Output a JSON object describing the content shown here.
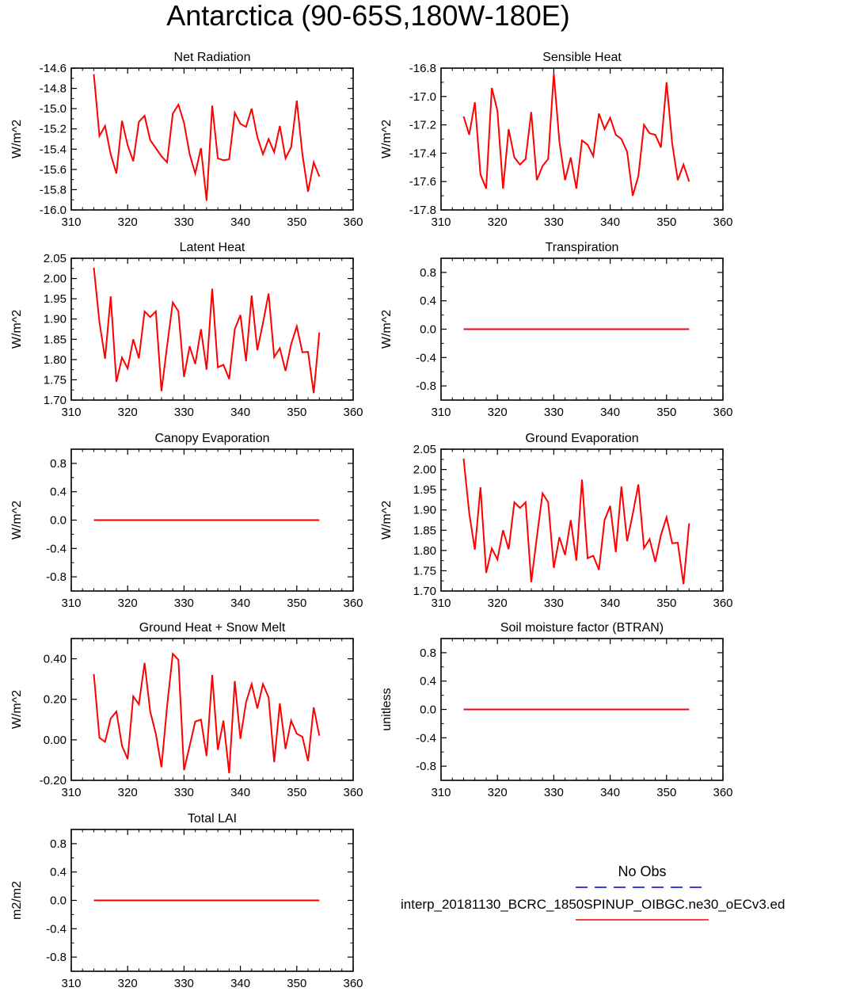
{
  "figure": {
    "title": "Antarctica (90-65S,180W-180E)",
    "line_color": "#ff0000",
    "obs_color": "#0000cc",
    "legend": {
      "entries": [
        {
          "label": "No Obs",
          "style": "dashed",
          "color": "#0000cc"
        },
        {
          "label": "interp_20181130_BCRC_1850SPINUP_OIBGC.ne30_oECv3.ed",
          "style": "solid",
          "color": "#ff0000"
        }
      ]
    }
  },
  "chart_data": [
    {
      "id": "net-radiation",
      "type": "line",
      "title": "Net Radiation",
      "ylabel": "W/m^2",
      "xlim": [
        310,
        360
      ],
      "xticks": [
        310,
        320,
        330,
        340,
        350,
        360
      ],
      "ylim": [
        -16.0,
        -14.6
      ],
      "yticks": [
        -16.0,
        -15.8,
        -15.6,
        -15.4,
        -15.2,
        -15.0,
        -14.8,
        -14.6
      ],
      "ytick_labels": [
        "-16.0",
        "-15.8",
        "-15.6",
        "-15.4",
        "-15.2",
        "-15.0",
        "-14.8",
        "-14.6"
      ],
      "x_start": 314,
      "values": [
        -14.66,
        -15.27,
        -15.17,
        -15.45,
        -15.64,
        -15.12,
        -15.36,
        -15.52,
        -15.13,
        -15.07,
        -15.31,
        -15.39,
        -15.47,
        -15.53,
        -15.05,
        -14.96,
        -15.14,
        -15.45,
        -15.64,
        -15.39,
        -15.91,
        -14.97,
        -15.49,
        -15.51,
        -15.5,
        -15.04,
        -15.15,
        -15.18,
        -15.0,
        -15.28,
        -15.45,
        -15.3,
        -15.43,
        -15.17,
        -15.49,
        -15.38,
        -14.92,
        -15.45,
        -15.82,
        -15.53,
        -15.67
      ]
    },
    {
      "id": "sensible-heat",
      "type": "line",
      "title": "Sensible Heat",
      "ylabel": "W/m^2",
      "xlim": [
        310,
        360
      ],
      "xticks": [
        310,
        320,
        330,
        340,
        350,
        360
      ],
      "ylim": [
        -17.8,
        -16.8
      ],
      "yticks": [
        -17.8,
        -17.6,
        -17.4,
        -17.2,
        -17.0,
        -16.8
      ],
      "ytick_labels": [
        "-17.8",
        "-17.6",
        "-17.4",
        "-17.2",
        "-17.0",
        "-16.8"
      ],
      "x_start": 314,
      "values": [
        -17.14,
        -17.27,
        -17.04,
        -17.55,
        -17.65,
        -16.94,
        -17.1,
        -17.65,
        -17.23,
        -17.43,
        -17.48,
        -17.44,
        -17.11,
        -17.59,
        -17.49,
        -17.44,
        -16.84,
        -17.32,
        -17.59,
        -17.43,
        -17.65,
        -17.31,
        -17.34,
        -17.42,
        -17.12,
        -17.23,
        -17.15,
        -17.27,
        -17.3,
        -17.39,
        -17.7,
        -17.56,
        -17.2,
        -17.26,
        -17.27,
        -17.36,
        -16.9,
        -17.33,
        -17.59,
        -17.48,
        -17.6
      ]
    },
    {
      "id": "latent-heat",
      "type": "line",
      "title": "Latent Heat",
      "ylabel": "W/m^2",
      "xlim": [
        310,
        360
      ],
      "xticks": [
        310,
        320,
        330,
        340,
        350,
        360
      ],
      "ylim": [
        1.7,
        2.05
      ],
      "yticks": [
        1.7,
        1.75,
        1.8,
        1.85,
        1.9,
        1.95,
        2.0,
        2.05
      ],
      "ytick_labels": [
        "1.70",
        "1.75",
        "1.80",
        "1.85",
        "1.90",
        "1.95",
        "2.00",
        "2.05"
      ],
      "x_start": 314,
      "values": [
        2.027,
        1.892,
        1.802,
        1.956,
        1.745,
        1.805,
        1.778,
        1.85,
        1.803,
        1.919,
        1.905,
        1.919,
        1.722,
        1.833,
        1.941,
        1.919,
        1.757,
        1.833,
        1.789,
        1.875,
        1.775,
        1.975,
        1.781,
        1.787,
        1.752,
        1.875,
        1.91,
        1.796,
        1.958,
        1.823,
        1.89,
        1.963,
        1.806,
        1.828,
        1.772,
        1.838,
        1.882,
        1.818,
        1.819,
        1.717,
        1.867
      ]
    },
    {
      "id": "transpiration",
      "type": "line",
      "title": "Transpiration",
      "ylabel": "W/m^2",
      "xlim": [
        310,
        360
      ],
      "xticks": [
        310,
        320,
        330,
        340,
        350,
        360
      ],
      "ylim": [
        -1.0,
        1.0
      ],
      "yticks": [
        -0.8,
        -0.4,
        0.0,
        0.4,
        0.8
      ],
      "ytick_labels": [
        "-0.8",
        "-0.4",
        "0.0",
        "0.4",
        "0.8"
      ],
      "x_start": 314,
      "x_end": 354,
      "constant": 0.0
    },
    {
      "id": "canopy-evaporation",
      "type": "line",
      "title": "Canopy Evaporation",
      "ylabel": "W/m^2",
      "xlim": [
        310,
        360
      ],
      "xticks": [
        310,
        320,
        330,
        340,
        350,
        360
      ],
      "ylim": [
        -1.0,
        1.0
      ],
      "yticks": [
        -0.8,
        -0.4,
        0.0,
        0.4,
        0.8
      ],
      "ytick_labels": [
        "-0.8",
        "-0.4",
        "0.0",
        "0.4",
        "0.8"
      ],
      "x_start": 314,
      "x_end": 354,
      "constant": 0.0
    },
    {
      "id": "ground-evaporation",
      "type": "line",
      "title": "Ground Evaporation",
      "ylabel": "W/m^2",
      "xlim": [
        310,
        360
      ],
      "xticks": [
        310,
        320,
        330,
        340,
        350,
        360
      ],
      "ylim": [
        1.7,
        2.05
      ],
      "yticks": [
        1.7,
        1.75,
        1.8,
        1.85,
        1.9,
        1.95,
        2.0,
        2.05
      ],
      "ytick_labels": [
        "1.70",
        "1.75",
        "1.80",
        "1.85",
        "1.90",
        "1.95",
        "2.00",
        "2.05"
      ],
      "x_start": 314,
      "values": [
        2.027,
        1.892,
        1.802,
        1.956,
        1.745,
        1.805,
        1.778,
        1.85,
        1.803,
        1.919,
        1.905,
        1.919,
        1.722,
        1.833,
        1.941,
        1.919,
        1.757,
        1.833,
        1.789,
        1.875,
        1.775,
        1.975,
        1.781,
        1.787,
        1.752,
        1.875,
        1.91,
        1.796,
        1.958,
        1.823,
        1.89,
        1.963,
        1.806,
        1.828,
        1.772,
        1.838,
        1.882,
        1.818,
        1.819,
        1.717,
        1.867
      ]
    },
    {
      "id": "ground-heat-snow-melt",
      "type": "line",
      "title": "Ground Heat + Snow Melt",
      "ylabel": "W/m^2",
      "xlim": [
        310,
        360
      ],
      "xticks": [
        310,
        320,
        330,
        340,
        350,
        360
      ],
      "ylim": [
        -0.2,
        0.5
      ],
      "yticks": [
        -0.2,
        0.0,
        0.2,
        0.4
      ],
      "ytick_labels": [
        "-0.20",
        "0.00",
        "0.20",
        "0.40"
      ],
      "x_start": 314,
      "values": [
        0.325,
        0.01,
        -0.01,
        0.105,
        0.14,
        -0.03,
        -0.095,
        0.215,
        0.175,
        0.38,
        0.14,
        0.03,
        -0.135,
        0.165,
        0.425,
        0.395,
        -0.15,
        -0.03,
        0.09,
        0.1,
        -0.08,
        0.32,
        -0.05,
        0.095,
        -0.165,
        0.29,
        0.005,
        0.185,
        0.275,
        0.155,
        0.275,
        0.21,
        -0.11,
        0.18,
        -0.045,
        0.095,
        0.03,
        0.015,
        -0.105,
        0.16,
        0.02
      ]
    },
    {
      "id": "soil-moisture-factor",
      "type": "line",
      "title": "Soil moisture factor (BTRAN)",
      "ylabel": "unitless",
      "xlim": [
        310,
        360
      ],
      "xticks": [
        310,
        320,
        330,
        340,
        350,
        360
      ],
      "ylim": [
        -1.0,
        1.0
      ],
      "yticks": [
        -0.8,
        -0.4,
        0.0,
        0.4,
        0.8
      ],
      "ytick_labels": [
        "-0.8",
        "-0.4",
        "0.0",
        "0.4",
        "0.8"
      ],
      "x_start": 314,
      "x_end": 354,
      "constant": 0.0
    },
    {
      "id": "total-lai",
      "type": "line",
      "title": "Total LAI",
      "ylabel": "m2/m2",
      "xlim": [
        310,
        360
      ],
      "xticks": [
        310,
        320,
        330,
        340,
        350,
        360
      ],
      "ylim": [
        -1.0,
        1.0
      ],
      "yticks": [
        -0.8,
        -0.4,
        0.0,
        0.4,
        0.8
      ],
      "ytick_labels": [
        "-0.8",
        "-0.4",
        "0.0",
        "0.4",
        "0.8"
      ],
      "x_start": 314,
      "x_end": 354,
      "constant": 0.0
    }
  ]
}
